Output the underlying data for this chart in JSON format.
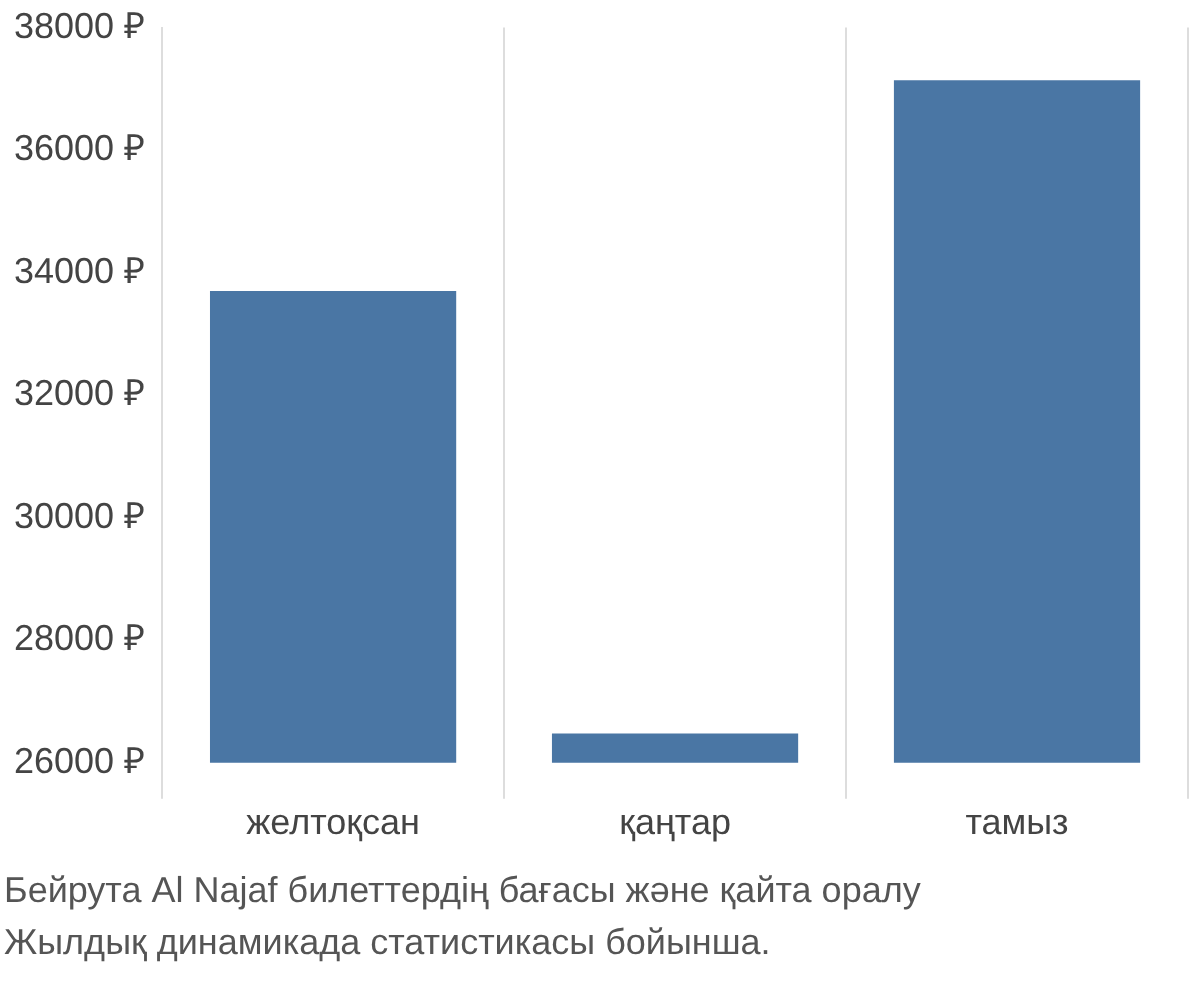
{
  "chart_data": {
    "type": "bar",
    "categories": [
      "желтоқсан",
      "қаңтар",
      "тамыз"
    ],
    "values": [
      33700,
      26480,
      37140
    ],
    "color": "#4a76a4",
    "ylim": [
      26000,
      38000
    ],
    "yticks": [
      {
        "value": 26000,
        "label": "26000 ₽"
      },
      {
        "value": 28000,
        "label": "28000 ₽"
      },
      {
        "value": 30000,
        "label": "30000 ₽"
      },
      {
        "value": 32000,
        "label": "32000 ₽"
      },
      {
        "value": 34000,
        "label": "34000 ₽"
      },
      {
        "value": 36000,
        "label": "36000 ₽"
      },
      {
        "value": 38000,
        "label": "38000 ₽"
      }
    ],
    "grid": "x",
    "annotations": [
      "Бейрута Al Najaf билеттердің бағасы және қайта оралу",
      "Жылдық динамикада статистикасы бойынша."
    ]
  }
}
